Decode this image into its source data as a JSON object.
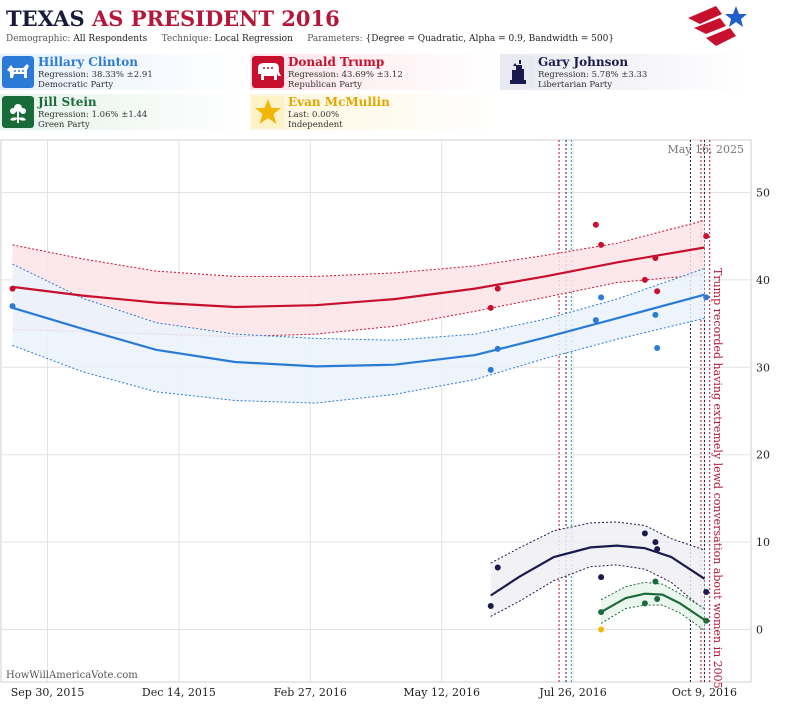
{
  "header": {
    "title_state": "TEXAS",
    "title_office": "AS PRESIDENT 2016",
    "demographic_label": "Demographic:",
    "demographic_value": "All Respondents",
    "technique_label": "Technique:",
    "technique_value": "Local Regression",
    "parameters_label": "Parameters:",
    "parameters_value": "{Degree = Quadratic, Alpha = 0.9, Bandwidth = 500}",
    "logo_icon": "star-flag-logo-icon"
  },
  "candidates": [
    {
      "name": "Hillary Clinton",
      "regression": "Regression: 38.33% ±2.91",
      "party": "Democratic Party",
      "color": "#2b7bd6",
      "icon": "donkey-icon"
    },
    {
      "name": "Donald Trump",
      "regression": "Regression: 43.69% ±3.12",
      "party": "Republican Party",
      "color": "#c8102e",
      "icon": "elephant-icon"
    },
    {
      "name": "Gary Johnson",
      "regression": "Regression: 5.78% ±3.33",
      "party": "Libertarian Party",
      "color": "#1a1a4e",
      "icon": "statue-of-liberty-icon"
    },
    {
      "name": "Jill Stein",
      "regression": "Regression: 1.06% ±1.44",
      "party": "Green Party",
      "color": "#1a6b3a",
      "icon": "flower-icon"
    },
    {
      "name": "Evan McMullin",
      "regression": "Last: 0.00%",
      "party": "Independent",
      "color": "#f2b705",
      "icon": "star-icon"
    }
  ],
  "chart_data": {
    "type": "line",
    "date_label": "May 16, 2025",
    "watermark": "HowWillAmericaVote.com",
    "x_ticks": [
      "Sep 30, 2015",
      "Dec 14, 2015",
      "Feb 27, 2016",
      "May 12, 2016",
      "Jul 26, 2016",
      "Oct 9, 2016"
    ],
    "y_ticks": [
      0,
      10,
      20,
      30,
      40,
      50
    ],
    "xlim": [
      "2015-09-04",
      "2016-11-04"
    ],
    "ylim": [
      -6,
      56
    ],
    "grid": true,
    "annotation": "Trump recorded having extremely lewd conversation about women in 2005",
    "event_lines": [
      {
        "date": "2016-07-18",
        "color": "#c8102e"
      },
      {
        "date": "2016-07-22",
        "color": "#1a1a4e"
      },
      {
        "date": "2016-07-25",
        "color": "#2b9bd6"
      },
      {
        "date": "2016-10-01",
        "color": "#1a1a4e"
      },
      {
        "date": "2016-10-07",
        "color": "#c8102e"
      },
      {
        "date": "2016-10-09",
        "color": "#1a1a4e"
      },
      {
        "date": "2016-10-12",
        "color": "#c8102e"
      }
    ],
    "series": [
      {
        "name": "Donald Trump",
        "color": "#c8102e",
        "fill": "#fbe3e8",
        "trend": [
          [
            "2015-09-10",
            39.2
          ],
          [
            "2015-10-20",
            38.2
          ],
          [
            "2015-12-01",
            37.4
          ],
          [
            "2016-01-15",
            36.9
          ],
          [
            "2016-03-01",
            37.1
          ],
          [
            "2016-04-15",
            37.8
          ],
          [
            "2016-05-31",
            39.0
          ],
          [
            "2016-07-10",
            40.4
          ],
          [
            "2016-08-20",
            42.0
          ],
          [
            "2016-10-09",
            43.7
          ]
        ],
        "upper": [
          [
            "2015-09-10",
            44.0
          ],
          [
            "2015-10-20",
            42.4
          ],
          [
            "2015-12-01",
            41.0
          ],
          [
            "2016-01-15",
            40.4
          ],
          [
            "2016-03-01",
            40.4
          ],
          [
            "2016-04-15",
            40.8
          ],
          [
            "2016-05-31",
            41.6
          ],
          [
            "2016-07-10",
            42.8
          ],
          [
            "2016-08-20",
            44.2
          ],
          [
            "2016-10-09",
            46.8
          ]
        ],
        "lower": [
          [
            "2015-09-10",
            34.3
          ],
          [
            "2015-10-20",
            34.1
          ],
          [
            "2015-12-01",
            33.8
          ],
          [
            "2016-01-15",
            33.5
          ],
          [
            "2016-03-01",
            33.8
          ],
          [
            "2016-04-15",
            34.7
          ],
          [
            "2016-05-31",
            36.4
          ],
          [
            "2016-07-10",
            38.0
          ],
          [
            "2016-08-20",
            39.7
          ],
          [
            "2016-10-09",
            40.6
          ]
        ],
        "points": [
          [
            "2015-09-10",
            39.0
          ],
          [
            "2016-06-09",
            36.8
          ],
          [
            "2016-06-13",
            39.0
          ],
          [
            "2016-08-08",
            46.3
          ],
          [
            "2016-08-11",
            44.0
          ],
          [
            "2016-09-05",
            40.0
          ],
          [
            "2016-09-11",
            42.5
          ],
          [
            "2016-09-12",
            38.7
          ],
          [
            "2016-10-10",
            45.0
          ]
        ]
      },
      {
        "name": "Hillary Clinton",
        "color": "#2b7bd6",
        "fill": "#eaf2fb",
        "trend": [
          [
            "2015-09-10",
            36.8
          ],
          [
            "2015-10-20",
            34.4
          ],
          [
            "2015-12-01",
            32.0
          ],
          [
            "2016-01-15",
            30.6
          ],
          [
            "2016-03-01",
            30.1
          ],
          [
            "2016-04-15",
            30.3
          ],
          [
            "2016-05-31",
            31.4
          ],
          [
            "2016-07-10",
            33.4
          ],
          [
            "2016-08-20",
            35.6
          ],
          [
            "2016-10-09",
            38.3
          ]
        ],
        "upper": [
          [
            "2015-09-10",
            41.8
          ],
          [
            "2015-10-20",
            37.9
          ],
          [
            "2015-12-01",
            35.1
          ],
          [
            "2016-01-15",
            33.8
          ],
          [
            "2016-03-01",
            33.3
          ],
          [
            "2016-04-15",
            33.1
          ],
          [
            "2016-05-31",
            33.8
          ],
          [
            "2016-07-10",
            35.5
          ],
          [
            "2016-08-20",
            37.8
          ],
          [
            "2016-10-09",
            41.3
          ]
        ],
        "lower": [
          [
            "2015-09-10",
            32.5
          ],
          [
            "2015-10-20",
            29.5
          ],
          [
            "2015-12-01",
            27.2
          ],
          [
            "2016-01-15",
            26.2
          ],
          [
            "2016-03-01",
            25.9
          ],
          [
            "2016-04-15",
            26.9
          ],
          [
            "2016-05-31",
            28.6
          ],
          [
            "2016-07-10",
            31.0
          ],
          [
            "2016-08-20",
            33.2
          ],
          [
            "2016-10-09",
            35.6
          ]
        ],
        "points": [
          [
            "2015-09-10",
            37.0
          ],
          [
            "2016-06-09",
            29.7
          ],
          [
            "2016-06-13",
            32.1
          ],
          [
            "2016-08-08",
            35.4
          ],
          [
            "2016-08-11",
            38.0
          ],
          [
            "2016-09-11",
            36.0
          ],
          [
            "2016-09-12",
            32.2
          ],
          [
            "2016-10-10",
            38.0
          ]
        ]
      },
      {
        "name": "Gary Johnson",
        "color": "#1a1a4e",
        "fill": "#eeeef5",
        "trend": [
          [
            "2016-06-09",
            3.9
          ],
          [
            "2016-06-25",
            6.0
          ],
          [
            "2016-07-15",
            8.3
          ],
          [
            "2016-08-05",
            9.4
          ],
          [
            "2016-08-20",
            9.6
          ],
          [
            "2016-09-05",
            9.3
          ],
          [
            "2016-09-20",
            8.3
          ],
          [
            "2016-10-09",
            5.8
          ]
        ],
        "upper": [
          [
            "2016-06-09",
            7.6
          ],
          [
            "2016-06-25",
            9.3
          ],
          [
            "2016-07-15",
            11.3
          ],
          [
            "2016-08-05",
            12.2
          ],
          [
            "2016-08-20",
            12.3
          ],
          [
            "2016-09-05",
            11.9
          ],
          [
            "2016-09-20",
            10.4
          ],
          [
            "2016-10-09",
            9.1
          ]
        ],
        "lower": [
          [
            "2016-06-09",
            1.5
          ],
          [
            "2016-06-25",
            3.2
          ],
          [
            "2016-07-15",
            5.6
          ],
          [
            "2016-08-05",
            7.2
          ],
          [
            "2016-08-20",
            7.4
          ],
          [
            "2016-09-05",
            6.9
          ],
          [
            "2016-09-20",
            5.4
          ],
          [
            "2016-10-09",
            2.2
          ]
        ],
        "points": [
          [
            "2016-06-09",
            2.7
          ],
          [
            "2016-06-13",
            7.1
          ],
          [
            "2016-08-11",
            6.0
          ],
          [
            "2016-09-05",
            11.0
          ],
          [
            "2016-09-11",
            10.0
          ],
          [
            "2016-09-12",
            9.2
          ],
          [
            "2016-10-10",
            4.3
          ]
        ]
      },
      {
        "name": "Jill Stein",
        "color": "#1a6b3a",
        "fill": "#e8f4ec",
        "trend": [
          [
            "2016-08-11",
            2.0
          ],
          [
            "2016-08-25",
            3.6
          ],
          [
            "2016-09-05",
            4.1
          ],
          [
            "2016-09-15",
            4.0
          ],
          [
            "2016-09-25",
            3.0
          ],
          [
            "2016-10-09",
            1.1
          ]
        ],
        "upper": [
          [
            "2016-08-11",
            3.4
          ],
          [
            "2016-08-25",
            4.9
          ],
          [
            "2016-09-05",
            5.4
          ],
          [
            "2016-09-15",
            5.2
          ],
          [
            "2016-09-25",
            4.1
          ],
          [
            "2016-10-09",
            2.4
          ]
        ],
        "lower": [
          [
            "2016-08-11",
            0.7
          ],
          [
            "2016-08-25",
            2.4
          ],
          [
            "2016-09-05",
            2.8
          ],
          [
            "2016-09-15",
            2.8
          ],
          [
            "2016-09-25",
            1.9
          ],
          [
            "2016-10-09",
            -0.1
          ]
        ],
        "points": [
          [
            "2016-08-11",
            2.0
          ],
          [
            "2016-09-05",
            3.0
          ],
          [
            "2016-09-11",
            5.5
          ],
          [
            "2016-09-12",
            3.5
          ],
          [
            "2016-10-10",
            1.0
          ]
        ]
      },
      {
        "name": "Evan McMullin",
        "color": "#f2b705",
        "points": [
          [
            "2016-08-11",
            0.0
          ]
        ]
      }
    ]
  }
}
